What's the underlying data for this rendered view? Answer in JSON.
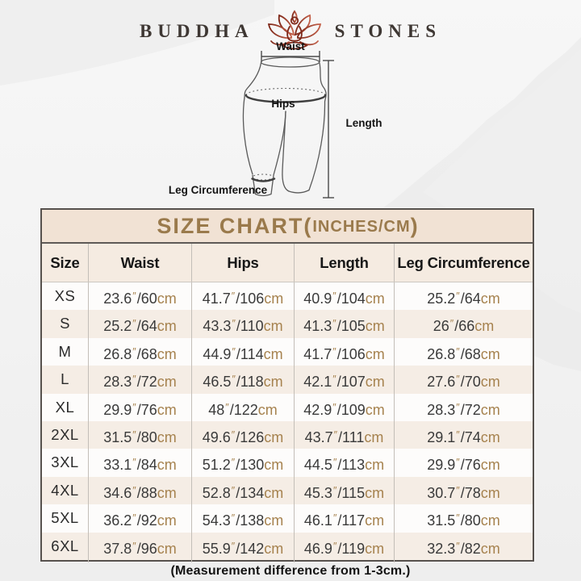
{
  "brand": {
    "left": "BUDDHA",
    "right": "STONES",
    "icon": "lotus-meditation-icon"
  },
  "diagram": {
    "waist_label": "Waist",
    "hips_label": "Hips",
    "length_label": "Length",
    "leg_label": "Leg Circumference"
  },
  "table": {
    "title_main": "SIZE CHART(",
    "title_sub": "INCHES/CM",
    "title_close": ")",
    "headers": [
      "Size",
      "Waist",
      "Hips",
      "Length",
      "Leg Circumference"
    ],
    "inch_mark": "″",
    "separator": "/",
    "cm_suffix": "cm",
    "rows": [
      {
        "size": "XS",
        "waist": {
          "in": "23.6",
          "cm": "60"
        },
        "hips": {
          "in": "41.7",
          "cm": "106"
        },
        "length": {
          "in": "40.9",
          "cm": "104"
        },
        "leg": {
          "in": "25.2",
          "cm": "64"
        }
      },
      {
        "size": "S",
        "waist": {
          "in": "25.2",
          "cm": "64"
        },
        "hips": {
          "in": "43.3",
          "cm": "110"
        },
        "length": {
          "in": "41.3",
          "cm": "105"
        },
        "leg": {
          "in": "26",
          "cm": "66"
        }
      },
      {
        "size": "M",
        "waist": {
          "in": "26.8",
          "cm": "68"
        },
        "hips": {
          "in": "44.9",
          "cm": "114"
        },
        "length": {
          "in": "41.7",
          "cm": "106"
        },
        "leg": {
          "in": "26.8",
          "cm": "68"
        }
      },
      {
        "size": "L",
        "waist": {
          "in": "28.3",
          "cm": "72"
        },
        "hips": {
          "in": "46.5",
          "cm": "118"
        },
        "length": {
          "in": "42.1",
          "cm": "107"
        },
        "leg": {
          "in": "27.6",
          "cm": "70"
        }
      },
      {
        "size": "XL",
        "waist": {
          "in": "29.9",
          "cm": "76"
        },
        "hips": {
          "in": "48",
          "cm": "122"
        },
        "length": {
          "in": "42.9",
          "cm": "109"
        },
        "leg": {
          "in": "28.3",
          "cm": "72"
        }
      },
      {
        "size": "2XL",
        "waist": {
          "in": "31.5",
          "cm": "80"
        },
        "hips": {
          "in": "49.6",
          "cm": "126"
        },
        "length": {
          "in": "43.7",
          "cm": "111"
        },
        "leg": {
          "in": "29.1",
          "cm": "74"
        }
      },
      {
        "size": "3XL",
        "waist": {
          "in": "33.1",
          "cm": "84"
        },
        "hips": {
          "in": "51.2",
          "cm": "130"
        },
        "length": {
          "in": "44.5",
          "cm": "113"
        },
        "leg": {
          "in": "29.9",
          "cm": "76"
        }
      },
      {
        "size": "4XL",
        "waist": {
          "in": "34.6",
          "cm": "88"
        },
        "hips": {
          "in": "52.8",
          "cm": "134"
        },
        "length": {
          "in": "45.3",
          "cm": "115"
        },
        "leg": {
          "in": "30.7",
          "cm": "78"
        }
      },
      {
        "size": "5XL",
        "waist": {
          "in": "36.2",
          "cm": "92"
        },
        "hips": {
          "in": "54.3",
          "cm": "138"
        },
        "length": {
          "in": "46.1",
          "cm": "117"
        },
        "leg": {
          "in": "31.5",
          "cm": "80"
        }
      },
      {
        "size": "6XL",
        "waist": {
          "in": "37.8",
          "cm": "96"
        },
        "hips": {
          "in": "55.9",
          "cm": "142"
        },
        "length": {
          "in": "46.9",
          "cm": "119"
        },
        "leg": {
          "in": "32.3",
          "cm": "82"
        }
      }
    ]
  },
  "footer": {
    "note": "(Measurement difference from 1-3cm.)"
  },
  "colors": {
    "accent_gold": "#9a7a4c",
    "unit_gold": "#a6824e",
    "title_bg": "#f1e2d4",
    "header_bg": "#f5ebe1",
    "stripe_bg": "#f5ede5",
    "lotus_dark_red": "#7d2718",
    "lotus_light_red": "#c4614a"
  }
}
